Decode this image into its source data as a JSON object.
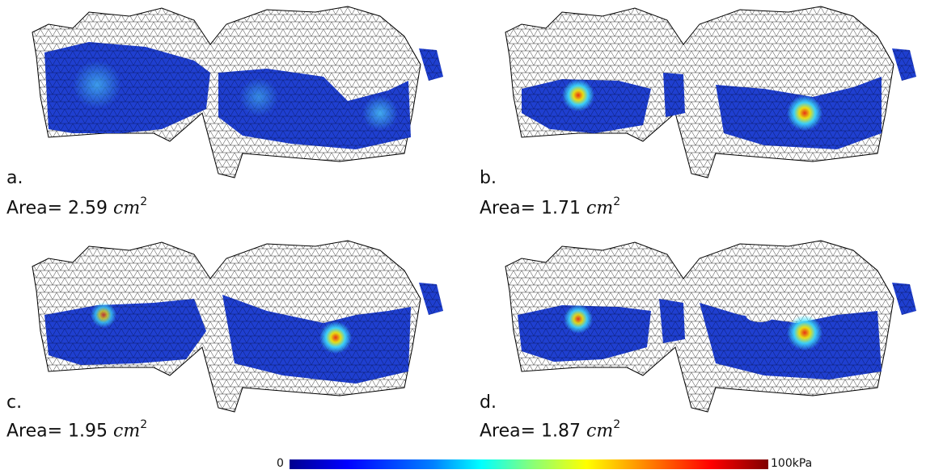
{
  "panels": [
    {
      "label": "a.",
      "area_prefix": "Area= 2.59",
      "area_unit": "cm",
      "area_exp": "2"
    },
    {
      "label": "b.",
      "area_prefix": "Area= 1.71",
      "area_unit": "cm",
      "area_exp": "2"
    },
    {
      "label": "c.",
      "area_prefix": "Area= 1.95",
      "area_unit": "cm",
      "area_exp": "2"
    },
    {
      "label": "d.",
      "area_prefix": "Area= 1.87",
      "area_unit": "cm",
      "area_exp": "2"
    }
  ],
  "colorbar": {
    "min_label": "0",
    "max_label": "100kPa",
    "colormap": "jet"
  },
  "colors": {
    "mesh_line": "#000000",
    "contact_base": "#1f3fd0",
    "hot": "#ff3000"
  }
}
